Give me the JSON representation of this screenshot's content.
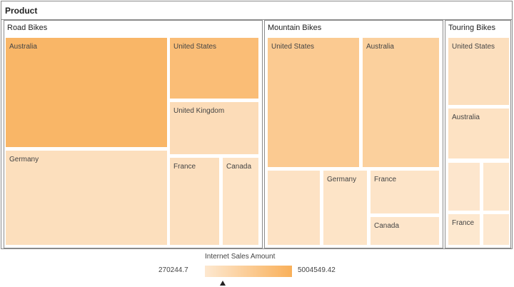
{
  "chart_data": {
    "type": "treemap",
    "title": "Product",
    "legend": {
      "title": "Internet Sales Amount",
      "min": "270244.7",
      "max": "5004549.42",
      "min_color": "#fde8d0",
      "max_color": "#f9b05a"
    },
    "groups": [
      {
        "name": "Road Bikes",
        "children": [
          {
            "label": "Australia",
            "value": 4500000
          },
          {
            "label": "United States",
            "value": 3900000
          },
          {
            "label": "United Kingdom",
            "value": 1250000
          },
          {
            "label": "Germany",
            "value": 1050000
          },
          {
            "label": "France",
            "value": 1000000
          },
          {
            "label": "Canada",
            "value": 700000
          }
        ]
      },
      {
        "name": "Mountain Bikes",
        "children": [
          {
            "label": "United States",
            "value": 2800000
          },
          {
            "label": "Australia",
            "value": 2300000
          },
          {
            "label": "",
            "value": 750000
          },
          {
            "label": "Germany",
            "value": 650000
          },
          {
            "label": "France",
            "value": 600000
          },
          {
            "label": "Canada",
            "value": 500000
          }
        ]
      },
      {
        "name": "Touring Bikes",
        "children": [
          {
            "label": "United States",
            "value": 1000000
          },
          {
            "label": "Australia",
            "value": 800000
          },
          {
            "label": "",
            "value": 400000
          },
          {
            "label": "",
            "value": 380000
          },
          {
            "label": "France",
            "value": 300000
          },
          {
            "label": "",
            "value": 270244.7
          }
        ]
      }
    ]
  }
}
